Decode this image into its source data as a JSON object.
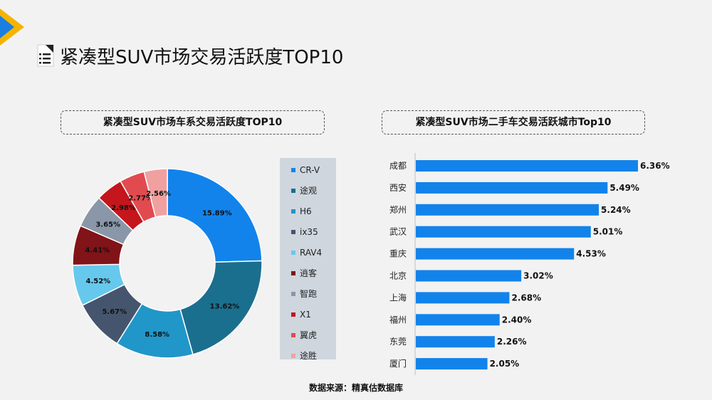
{
  "header": {
    "title": "紧凑型SUV市场交易活跃度TOP10"
  },
  "source": "数据来源：精真估数据库",
  "colors": {
    "background": "#f2f2f2",
    "bar": "#1283eb",
    "legend_bg": "#cfd6de",
    "logo_blue": "#1a7fe0",
    "logo_yellow": "#f5b400"
  },
  "chart_data": [
    {
      "type": "pie",
      "title": "紧凑型SUV市场车系交易活跃度TOP10",
      "donut": true,
      "legend_position": "right",
      "slices": [
        {
          "name": "CR-V",
          "value": 15.89,
          "label": "15.89%",
          "color": "#1283eb"
        },
        {
          "name": "途观",
          "value": 13.62,
          "label": "13.62%",
          "color": "#1b6f8e"
        },
        {
          "name": "H6",
          "value": 8.58,
          "label": "8.58%",
          "color": "#2196c9"
        },
        {
          "name": "ix35",
          "value": 5.67,
          "label": "5.67%",
          "color": "#45556e"
        },
        {
          "name": "RAV4",
          "value": 4.52,
          "label": "4.52%",
          "color": "#66c8ec"
        },
        {
          "name": "逍客",
          "value": 4.41,
          "label": "4.41%",
          "color": "#801418"
        },
        {
          "name": "智跑",
          "value": 3.65,
          "label": "3.65%",
          "color": "#8997a8"
        },
        {
          "name": "X1",
          "value": 2.98,
          "label": "2.98%",
          "color": "#c4161c"
        },
        {
          "name": "翼虎",
          "value": 2.77,
          "label": "2.77%",
          "color": "#e14b4f"
        },
        {
          "name": "途胜",
          "value": 2.56,
          "label": "2.56%",
          "color": "#f1a0a0"
        }
      ]
    },
    {
      "type": "bar",
      "orientation": "horizontal",
      "title": "紧凑型SUV市场二手车交易活跃城市Top10",
      "categories": [
        "成都",
        "西安",
        "郑州",
        "武汉",
        "重庆",
        "北京",
        "上海",
        "福州",
        "东莞",
        "厦门"
      ],
      "values": [
        6.36,
        5.49,
        5.24,
        5.01,
        4.53,
        3.02,
        2.68,
        2.4,
        2.26,
        2.05
      ],
      "value_labels": [
        "6.36%",
        "5.49%",
        "5.24%",
        "5.01%",
        "4.53%",
        "3.02%",
        "2.68%",
        "2.40%",
        "2.26%",
        "2.05%"
      ],
      "xlim": [
        0,
        6.36
      ],
      "grid": false
    }
  ]
}
